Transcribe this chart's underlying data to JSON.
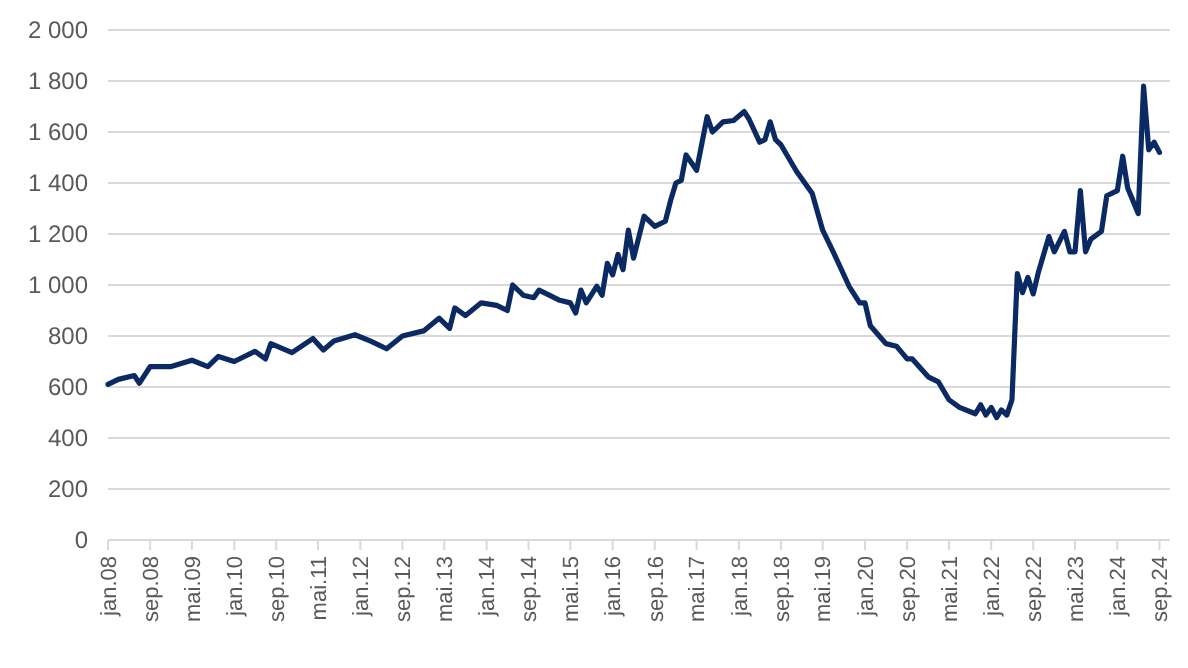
{
  "chart_data": {
    "type": "line",
    "grid": "y",
    "marker": "none",
    "line_style": "solid",
    "x": [
      "2008-01",
      "2008-03",
      "2008-06",
      "2008-07",
      "2008-09",
      "2008-11",
      "2009-01",
      "2009-05",
      "2009-08",
      "2009-10",
      "2010-01",
      "2010-05",
      "2010-07",
      "2010-08",
      "2010-12",
      "2011-04",
      "2011-06",
      "2011-08",
      "2011-12",
      "2012-03",
      "2012-06",
      "2012-09",
      "2013-01",
      "2013-04",
      "2013-06",
      "2013-07",
      "2013-09",
      "2013-12",
      "2014-03",
      "2014-05",
      "2014-06",
      "2014-08",
      "2014-10",
      "2014-11",
      "2015-03",
      "2015-05",
      "2015-06",
      "2015-07",
      "2015-08",
      "2015-10",
      "2015-11",
      "2015-12",
      "2016-01",
      "2016-02",
      "2016-03",
      "2016-04",
      "2016-05",
      "2016-07",
      "2016-09",
      "2016-11",
      "2016-12",
      "2017-01",
      "2017-02",
      "2017-03",
      "2017-05",
      "2017-07",
      "2017-08",
      "2017-10",
      "2017-12",
      "2018-02",
      "2018-03",
      "2018-05",
      "2018-06",
      "2018-07",
      "2018-08",
      "2018-09",
      "2018-12",
      "2019-03",
      "2019-05",
      "2019-07",
      "2019-10",
      "2019-12",
      "2020-01",
      "2020-02",
      "2020-05",
      "2020-07",
      "2020-09",
      "2020-10",
      "2021-01",
      "2021-03",
      "2021-05",
      "2021-07",
      "2021-10",
      "2021-11",
      "2021-12",
      "2022-01",
      "2022-02",
      "2022-03",
      "2022-04",
      "2022-05",
      "2022-06",
      "2022-07",
      "2022-08",
      "2022-09",
      "2022-10",
      "2022-12",
      "2023-01",
      "2023-03",
      "2023-04",
      "2023-05",
      "2023-06",
      "2023-07",
      "2023-08",
      "2023-10",
      "2023-11",
      "2024-01",
      "2024-02",
      "2024-03",
      "2024-05",
      "2024-06",
      "2024-07",
      "2024-08",
      "2024-09"
    ],
    "series": [
      {
        "color": "#0b2a63",
        "values": [
          610,
          630,
          645,
          615,
          680,
          680,
          680,
          705,
          680,
          720,
          700,
          740,
          710,
          770,
          735,
          790,
          745,
          780,
          805,
          780,
          750,
          800,
          820,
          870,
          830,
          910,
          880,
          930,
          920,
          900,
          1000,
          960,
          950,
          980,
          940,
          930,
          890,
          980,
          930,
          995,
          960,
          1085,
          1040,
          1120,
          1060,
          1215,
          1105,
          1270,
          1230,
          1250,
          1330,
          1400,
          1410,
          1510,
          1450,
          1660,
          1600,
          1640,
          1645,
          1680,
          1650,
          1560,
          1570,
          1640,
          1570,
          1550,
          1445,
          1360,
          1215,
          1130,
          995,
          930,
          930,
          840,
          770,
          760,
          710,
          710,
          640,
          620,
          550,
          520,
          495,
          530,
          490,
          520,
          480,
          510,
          490,
          550,
          1045,
          970,
          1030,
          965,
          1050,
          1190,
          1130,
          1210,
          1130,
          1130,
          1370,
          1130,
          1180,
          1210,
          1350,
          1370,
          1505,
          1380,
          1280,
          1780,
          1530,
          1560,
          1520
        ]
      }
    ],
    "xlim": [
      "2008-01",
      "2024-11"
    ],
    "xticks": [
      {
        "value": "2008-01",
        "label": "jan.08"
      },
      {
        "value": "2008-09",
        "label": "sep.08"
      },
      {
        "value": "2009-05",
        "label": "mai.09"
      },
      {
        "value": "2010-01",
        "label": "jan.10"
      },
      {
        "value": "2010-09",
        "label": "sep.10"
      },
      {
        "value": "2011-05",
        "label": "mai.11"
      },
      {
        "value": "2012-01",
        "label": "jan.12"
      },
      {
        "value": "2012-09",
        "label": "sep.12"
      },
      {
        "value": "2013-05",
        "label": "mai.13"
      },
      {
        "value": "2014-01",
        "label": "jan.14"
      },
      {
        "value": "2014-09",
        "label": "sep.14"
      },
      {
        "value": "2015-05",
        "label": "mai.15"
      },
      {
        "value": "2016-01",
        "label": "jan.16"
      },
      {
        "value": "2016-09",
        "label": "sep.16"
      },
      {
        "value": "2017-05",
        "label": "mai.17"
      },
      {
        "value": "2018-01",
        "label": "jan.18"
      },
      {
        "value": "2018-09",
        "label": "sep.18"
      },
      {
        "value": "2019-05",
        "label": "mai.19"
      },
      {
        "value": "2020-01",
        "label": "jan.20"
      },
      {
        "value": "2020-09",
        "label": "sep.20"
      },
      {
        "value": "2021-05",
        "label": "mai.21"
      },
      {
        "value": "2022-01",
        "label": "jan.22"
      },
      {
        "value": "2022-09",
        "label": "sep.22"
      },
      {
        "value": "2023-05",
        "label": "mai.23"
      },
      {
        "value": "2024-01",
        "label": "jan.24"
      },
      {
        "value": "2024-09",
        "label": "sep.24"
      }
    ],
    "ylim": [
      0,
      2000
    ],
    "yticks": [
      0,
      200,
      400,
      600,
      800,
      {
        "value": 1000,
        "label": "1 000"
      },
      {
        "value": 1200,
        "label": "1 200"
      },
      {
        "value": 1400,
        "label": "1 400"
      },
      {
        "value": 1600,
        "label": "1 600"
      },
      {
        "value": 1800,
        "label": "1 800"
      },
      {
        "value": 2000,
        "label": "2 000"
      }
    ]
  }
}
